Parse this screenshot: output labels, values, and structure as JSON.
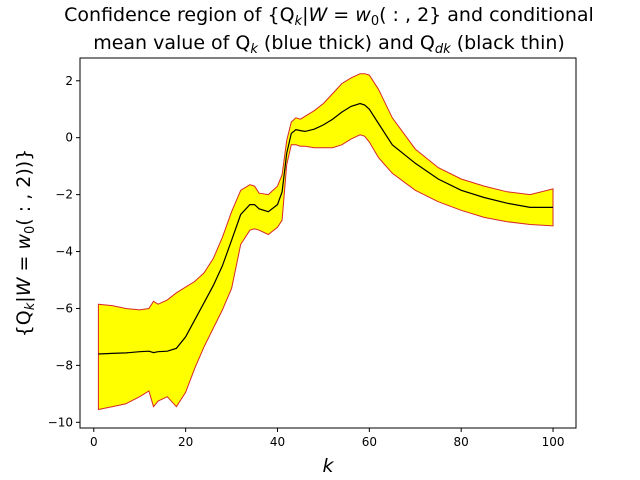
{
  "chart_data": {
    "type": "area",
    "title_line1_text": "Confidence region of {Q",
    "title_line1_sub": "k",
    "title_line1_mid": "|W = w",
    "title_line1_sub2": "0",
    "title_line1_end": "( : , 2} and conditional",
    "title_line2_pre": "mean value of Q",
    "title_line2_sub": "k",
    "title_line2_mid": " (blue thick) and Q",
    "title_line2_sub2": "dk",
    "title_line2_end": " (black thin)",
    "xlabel": "k",
    "ylabel": "{Q_k|W = w_0( : , 2))}",
    "ylabel_pre": "{Q",
    "ylabel_sub": "k",
    "ylabel_mid": "|W = w",
    "ylabel_sub2": "0",
    "ylabel_end": "( : , 2))}",
    "xlim": [
      -3,
      105
    ],
    "ylim": [
      -10.2,
      2.8
    ],
    "xticks": [
      0,
      20,
      40,
      60,
      80,
      100
    ],
    "yticks": [
      -10,
      -8,
      -6,
      -4,
      -2,
      0,
      2
    ],
    "colors": {
      "band_fill": "#ffff00",
      "band_edge": "#d62728",
      "mean_line": "#000000"
    },
    "x": [
      1,
      4,
      7,
      10,
      12,
      13,
      14,
      16,
      18,
      20,
      22,
      24,
      26,
      28,
      30,
      32,
      34,
      35,
      36,
      38,
      40,
      41,
      42,
      43,
      44,
      45,
      46,
      48,
      50,
      52,
      54,
      56,
      58,
      59,
      60,
      62,
      65,
      70,
      75,
      80,
      85,
      90,
      95,
      100
    ],
    "upper": [
      -5.85,
      -5.9,
      -6.0,
      -6.05,
      -6.0,
      -5.75,
      -5.85,
      -5.7,
      -5.45,
      -5.25,
      -5.05,
      -4.75,
      -4.25,
      -3.5,
      -2.6,
      -1.85,
      -1.65,
      -1.7,
      -1.95,
      -2.0,
      -1.7,
      -1.3,
      -0.1,
      0.55,
      0.7,
      0.65,
      0.75,
      0.95,
      1.2,
      1.55,
      1.9,
      2.1,
      2.25,
      2.25,
      2.2,
      1.7,
      0.7,
      -0.4,
      -1.05,
      -1.45,
      -1.7,
      -1.9,
      -2.0,
      -1.8
    ],
    "lower": [
      -9.55,
      -9.45,
      -9.35,
      -9.1,
      -8.9,
      -9.45,
      -9.25,
      -9.1,
      -9.45,
      -8.95,
      -8.1,
      -7.35,
      -6.7,
      -6.05,
      -5.3,
      -3.75,
      -3.25,
      -3.2,
      -3.25,
      -3.4,
      -3.15,
      -2.9,
      -0.95,
      -0.25,
      -0.25,
      -0.3,
      -0.3,
      -0.35,
      -0.35,
      -0.35,
      -0.25,
      -0.05,
      0.1,
      0.05,
      -0.15,
      -0.7,
      -1.25,
      -1.85,
      -2.25,
      -2.55,
      -2.8,
      -2.95,
      -3.05,
      -3.1
    ],
    "mean": [
      -7.6,
      -7.58,
      -7.56,
      -7.52,
      -7.5,
      -7.55,
      -7.52,
      -7.5,
      -7.4,
      -7.0,
      -6.4,
      -5.8,
      -5.2,
      -4.5,
      -3.6,
      -2.7,
      -2.35,
      -2.35,
      -2.5,
      -2.6,
      -2.35,
      -1.9,
      -0.55,
      0.15,
      0.28,
      0.25,
      0.22,
      0.3,
      0.45,
      0.65,
      0.9,
      1.1,
      1.2,
      1.15,
      1.0,
      0.5,
      -0.25,
      -0.9,
      -1.45,
      -1.85,
      -2.1,
      -2.3,
      -2.45,
      -2.45
    ]
  }
}
